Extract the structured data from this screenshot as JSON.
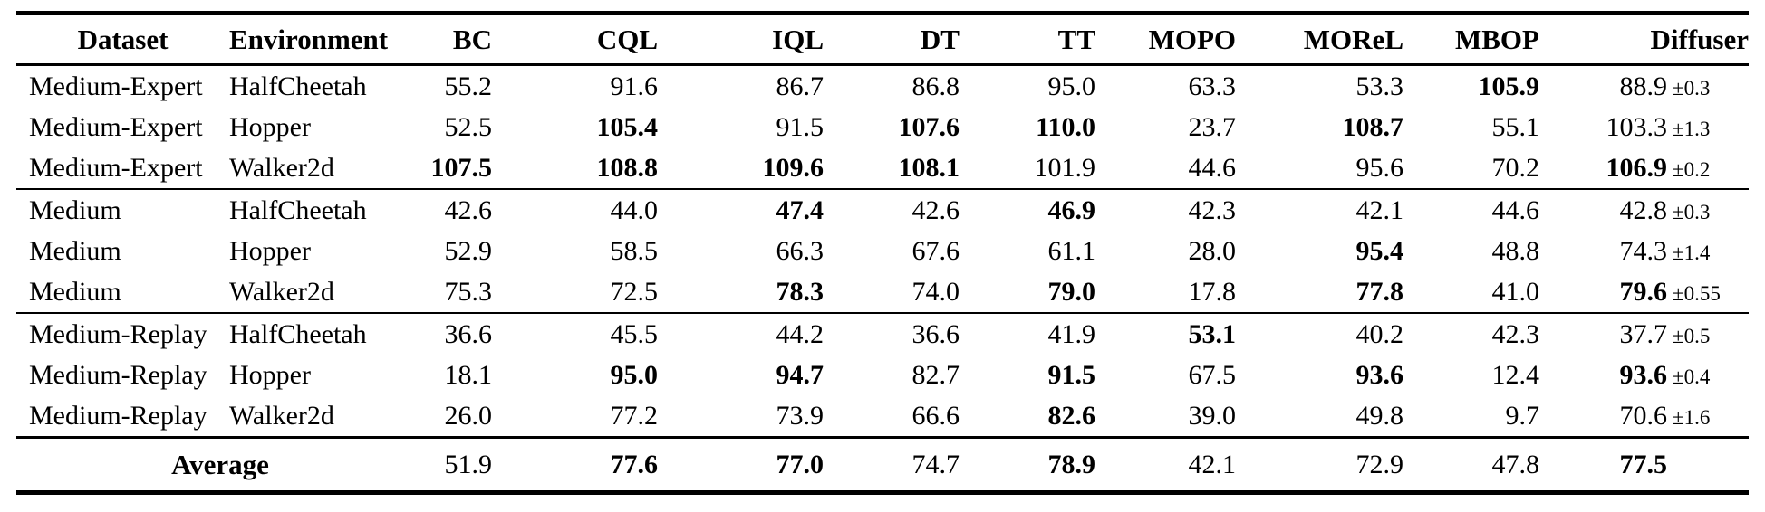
{
  "colors": {
    "text": "#000000",
    "background": "#ffffff",
    "rule": "#000000"
  },
  "table": {
    "columns": [
      "Dataset",
      "Environment",
      "BC",
      "CQL",
      "IQL",
      "DT",
      "TT",
      "MOPO",
      "MOReL",
      "MBOP",
      "Diffuser"
    ],
    "groups": [
      {
        "rows": [
          {
            "dataset": "Medium-Expert",
            "environment": "HalfCheetah",
            "values": [
              {
                "v": "55.2",
                "b": false
              },
              {
                "v": "91.6",
                "b": false
              },
              {
                "v": "86.7",
                "b": false
              },
              {
                "v": "86.8",
                "b": false
              },
              {
                "v": "95.0",
                "b": false
              },
              {
                "v": "63.3",
                "b": false
              },
              {
                "v": "53.3",
                "b": false
              },
              {
                "v": "105.9",
                "b": true
              }
            ],
            "diffuser": {
              "v": "88.9",
              "pm": "±0.3",
              "b": false
            }
          },
          {
            "dataset": "Medium-Expert",
            "environment": "Hopper",
            "values": [
              {
                "v": "52.5",
                "b": false
              },
              {
                "v": "105.4",
                "b": true
              },
              {
                "v": "91.5",
                "b": false
              },
              {
                "v": "107.6",
                "b": true
              },
              {
                "v": "110.0",
                "b": true
              },
              {
                "v": "23.7",
                "b": false
              },
              {
                "v": "108.7",
                "b": true
              },
              {
                "v": "55.1",
                "b": false
              }
            ],
            "diffuser": {
              "v": "103.3",
              "pm": "±1.3",
              "b": false
            }
          },
          {
            "dataset": "Medium-Expert",
            "environment": "Walker2d",
            "values": [
              {
                "v": "107.5",
                "b": true
              },
              {
                "v": "108.8",
                "b": true
              },
              {
                "v": "109.6",
                "b": true
              },
              {
                "v": "108.1",
                "b": true
              },
              {
                "v": "101.9",
                "b": false
              },
              {
                "v": "44.6",
                "b": false
              },
              {
                "v": "95.6",
                "b": false
              },
              {
                "v": "70.2",
                "b": false
              }
            ],
            "diffuser": {
              "v": "106.9",
              "pm": "±0.2",
              "b": true
            }
          }
        ]
      },
      {
        "rows": [
          {
            "dataset": "Medium",
            "environment": "HalfCheetah",
            "values": [
              {
                "v": "42.6",
                "b": false
              },
              {
                "v": "44.0",
                "b": false
              },
              {
                "v": "47.4",
                "b": true
              },
              {
                "v": "42.6",
                "b": false
              },
              {
                "v": "46.9",
                "b": true
              },
              {
                "v": "42.3",
                "b": false
              },
              {
                "v": "42.1",
                "b": false
              },
              {
                "v": "44.6",
                "b": false
              }
            ],
            "diffuser": {
              "v": "42.8",
              "pm": "±0.3",
              "b": false
            }
          },
          {
            "dataset": "Medium",
            "environment": "Hopper",
            "values": [
              {
                "v": "52.9",
                "b": false
              },
              {
                "v": "58.5",
                "b": false
              },
              {
                "v": "66.3",
                "b": false
              },
              {
                "v": "67.6",
                "b": false
              },
              {
                "v": "61.1",
                "b": false
              },
              {
                "v": "28.0",
                "b": false
              },
              {
                "v": "95.4",
                "b": true
              },
              {
                "v": "48.8",
                "b": false
              }
            ],
            "diffuser": {
              "v": "74.3",
              "pm": "±1.4",
              "b": false
            }
          },
          {
            "dataset": "Medium",
            "environment": "Walker2d",
            "values": [
              {
                "v": "75.3",
                "b": false
              },
              {
                "v": "72.5",
                "b": false
              },
              {
                "v": "78.3",
                "b": true
              },
              {
                "v": "74.0",
                "b": false
              },
              {
                "v": "79.0",
                "b": true
              },
              {
                "v": "17.8",
                "b": false
              },
              {
                "v": "77.8",
                "b": true
              },
              {
                "v": "41.0",
                "b": false
              }
            ],
            "diffuser": {
              "v": "79.6",
              "pm": "±0.55",
              "b": true
            }
          }
        ]
      },
      {
        "rows": [
          {
            "dataset": "Medium-Replay",
            "environment": "HalfCheetah",
            "values": [
              {
                "v": "36.6",
                "b": false
              },
              {
                "v": "45.5",
                "b": false
              },
              {
                "v": "44.2",
                "b": false
              },
              {
                "v": "36.6",
                "b": false
              },
              {
                "v": "41.9",
                "b": false
              },
              {
                "v": "53.1",
                "b": true
              },
              {
                "v": "40.2",
                "b": false
              },
              {
                "v": "42.3",
                "b": false
              }
            ],
            "diffuser": {
              "v": "37.7",
              "pm": "±0.5",
              "b": false
            }
          },
          {
            "dataset": "Medium-Replay",
            "environment": "Hopper",
            "values": [
              {
                "v": "18.1",
                "b": false
              },
              {
                "v": "95.0",
                "b": true
              },
              {
                "v": "94.7",
                "b": true
              },
              {
                "v": "82.7",
                "b": false
              },
              {
                "v": "91.5",
                "b": true
              },
              {
                "v": "67.5",
                "b": false
              },
              {
                "v": "93.6",
                "b": true
              },
              {
                "v": "12.4",
                "b": false
              }
            ],
            "diffuser": {
              "v": "93.6",
              "pm": "±0.4",
              "b": true
            }
          },
          {
            "dataset": "Medium-Replay",
            "environment": "Walker2d",
            "values": [
              {
                "v": "26.0",
                "b": false
              },
              {
                "v": "77.2",
                "b": false
              },
              {
                "v": "73.9",
                "b": false
              },
              {
                "v": "66.6",
                "b": false
              },
              {
                "v": "82.6",
                "b": true
              },
              {
                "v": "39.0",
                "b": false
              },
              {
                "v": "49.8",
                "b": false
              },
              {
                "v": "9.7",
                "b": false
              }
            ],
            "diffuser": {
              "v": "70.6",
              "pm": "±1.6",
              "b": false
            }
          }
        ]
      }
    ],
    "footer": {
      "label": "Average",
      "values": [
        {
          "v": "51.9",
          "b": false
        },
        {
          "v": "77.6",
          "b": true
        },
        {
          "v": "77.0",
          "b": true
        },
        {
          "v": "74.7",
          "b": false
        },
        {
          "v": "78.9",
          "b": true
        },
        {
          "v": "42.1",
          "b": false
        },
        {
          "v": "72.9",
          "b": false
        },
        {
          "v": "47.8",
          "b": false
        }
      ],
      "diffuser": {
        "v": "77.5",
        "pm": "",
        "b": true
      }
    }
  }
}
